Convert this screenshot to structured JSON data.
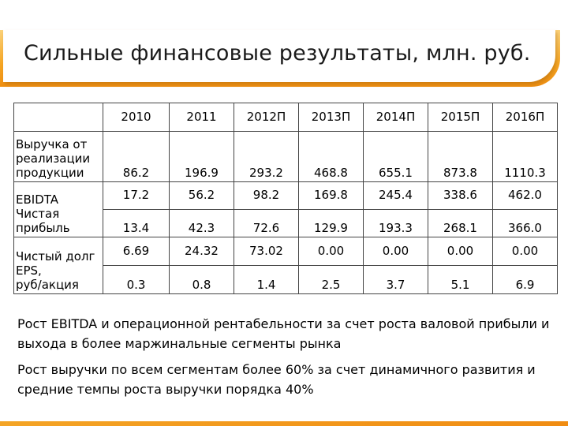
{
  "title": "Сильные финансовые результаты, млн. руб.",
  "table": {
    "headers": [
      "",
      "2010",
      "2011",
      "2012П",
      "2013П",
      "2014П",
      "2015П",
      "2016П"
    ],
    "rows": [
      {
        "label": "Выручка от\nреализации\nпродукции",
        "values": [
          "86.2",
          "196.9",
          "293.2",
          "468.8",
          "655.1",
          "873.8",
          "1110.3"
        ]
      },
      {
        "label": "EBIDTA\nЧистая\nприбыль",
        "values": [
          "17.2",
          "56.2",
          "98.2",
          "169.8",
          "245.4",
          "338.6",
          "462.0"
        ],
        "values2": [
          "13.4",
          "42.3",
          "72.6",
          "129.9",
          "193.3",
          "268.1",
          "366.0"
        ]
      },
      {
        "label": "Чистый долг\nEPS,\nруб/акция",
        "values": [
          "6.69",
          "24.32",
          "73.02",
          "0.00",
          "0.00",
          "0.00",
          "0.00"
        ],
        "values2": [
          "0.3",
          "0.8",
          "1.4",
          "2.5",
          "3.7",
          "5.1",
          "6.9"
        ]
      }
    ]
  },
  "notes": [
    "Рост EBITDA и операционной рентабельности за счет роста валовой прибыли и выхода в более маржинальные сегменты рынка",
    "Рост выручки по всем сегментам более 60% за счет динамичного развития и средние темпы роста выручки порядка 40%"
  ],
  "colors": {
    "accent": "#f6a623",
    "accent_dark": "#ef8f12"
  }
}
